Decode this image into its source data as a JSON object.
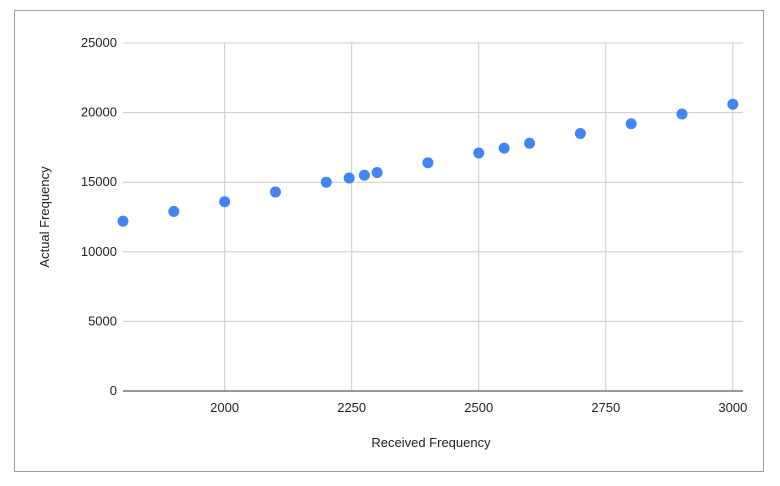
{
  "chart_data": {
    "type": "scatter",
    "title": "",
    "xlabel": "Received Frequency",
    "ylabel": "Actual Frequency",
    "xlim": [
      1800,
      3020
    ],
    "ylim": [
      0,
      25000
    ],
    "x_ticks": [
      2000,
      2250,
      2500,
      2750,
      3000
    ],
    "y_ticks": [
      0,
      5000,
      10000,
      15000,
      20000,
      25000
    ],
    "grid": true,
    "legend": "none",
    "series": [
      {
        "color": "#4285f4",
        "points": [
          {
            "x": 1800,
            "y": 12200
          },
          {
            "x": 1900,
            "y": 12900
          },
          {
            "x": 2000,
            "y": 13600
          },
          {
            "x": 2100,
            "y": 14300
          },
          {
            "x": 2200,
            "y": 15000
          },
          {
            "x": 2245,
            "y": 15300
          },
          {
            "x": 2275,
            "y": 15500
          },
          {
            "x": 2300,
            "y": 15700
          },
          {
            "x": 2400,
            "y": 16400
          },
          {
            "x": 2500,
            "y": 17100
          },
          {
            "x": 2550,
            "y": 17450
          },
          {
            "x": 2600,
            "y": 17800
          },
          {
            "x": 2700,
            "y": 18500
          },
          {
            "x": 2800,
            "y": 19200
          },
          {
            "x": 2900,
            "y": 19900
          },
          {
            "x": 3000,
            "y": 20600
          }
        ]
      }
    ]
  }
}
